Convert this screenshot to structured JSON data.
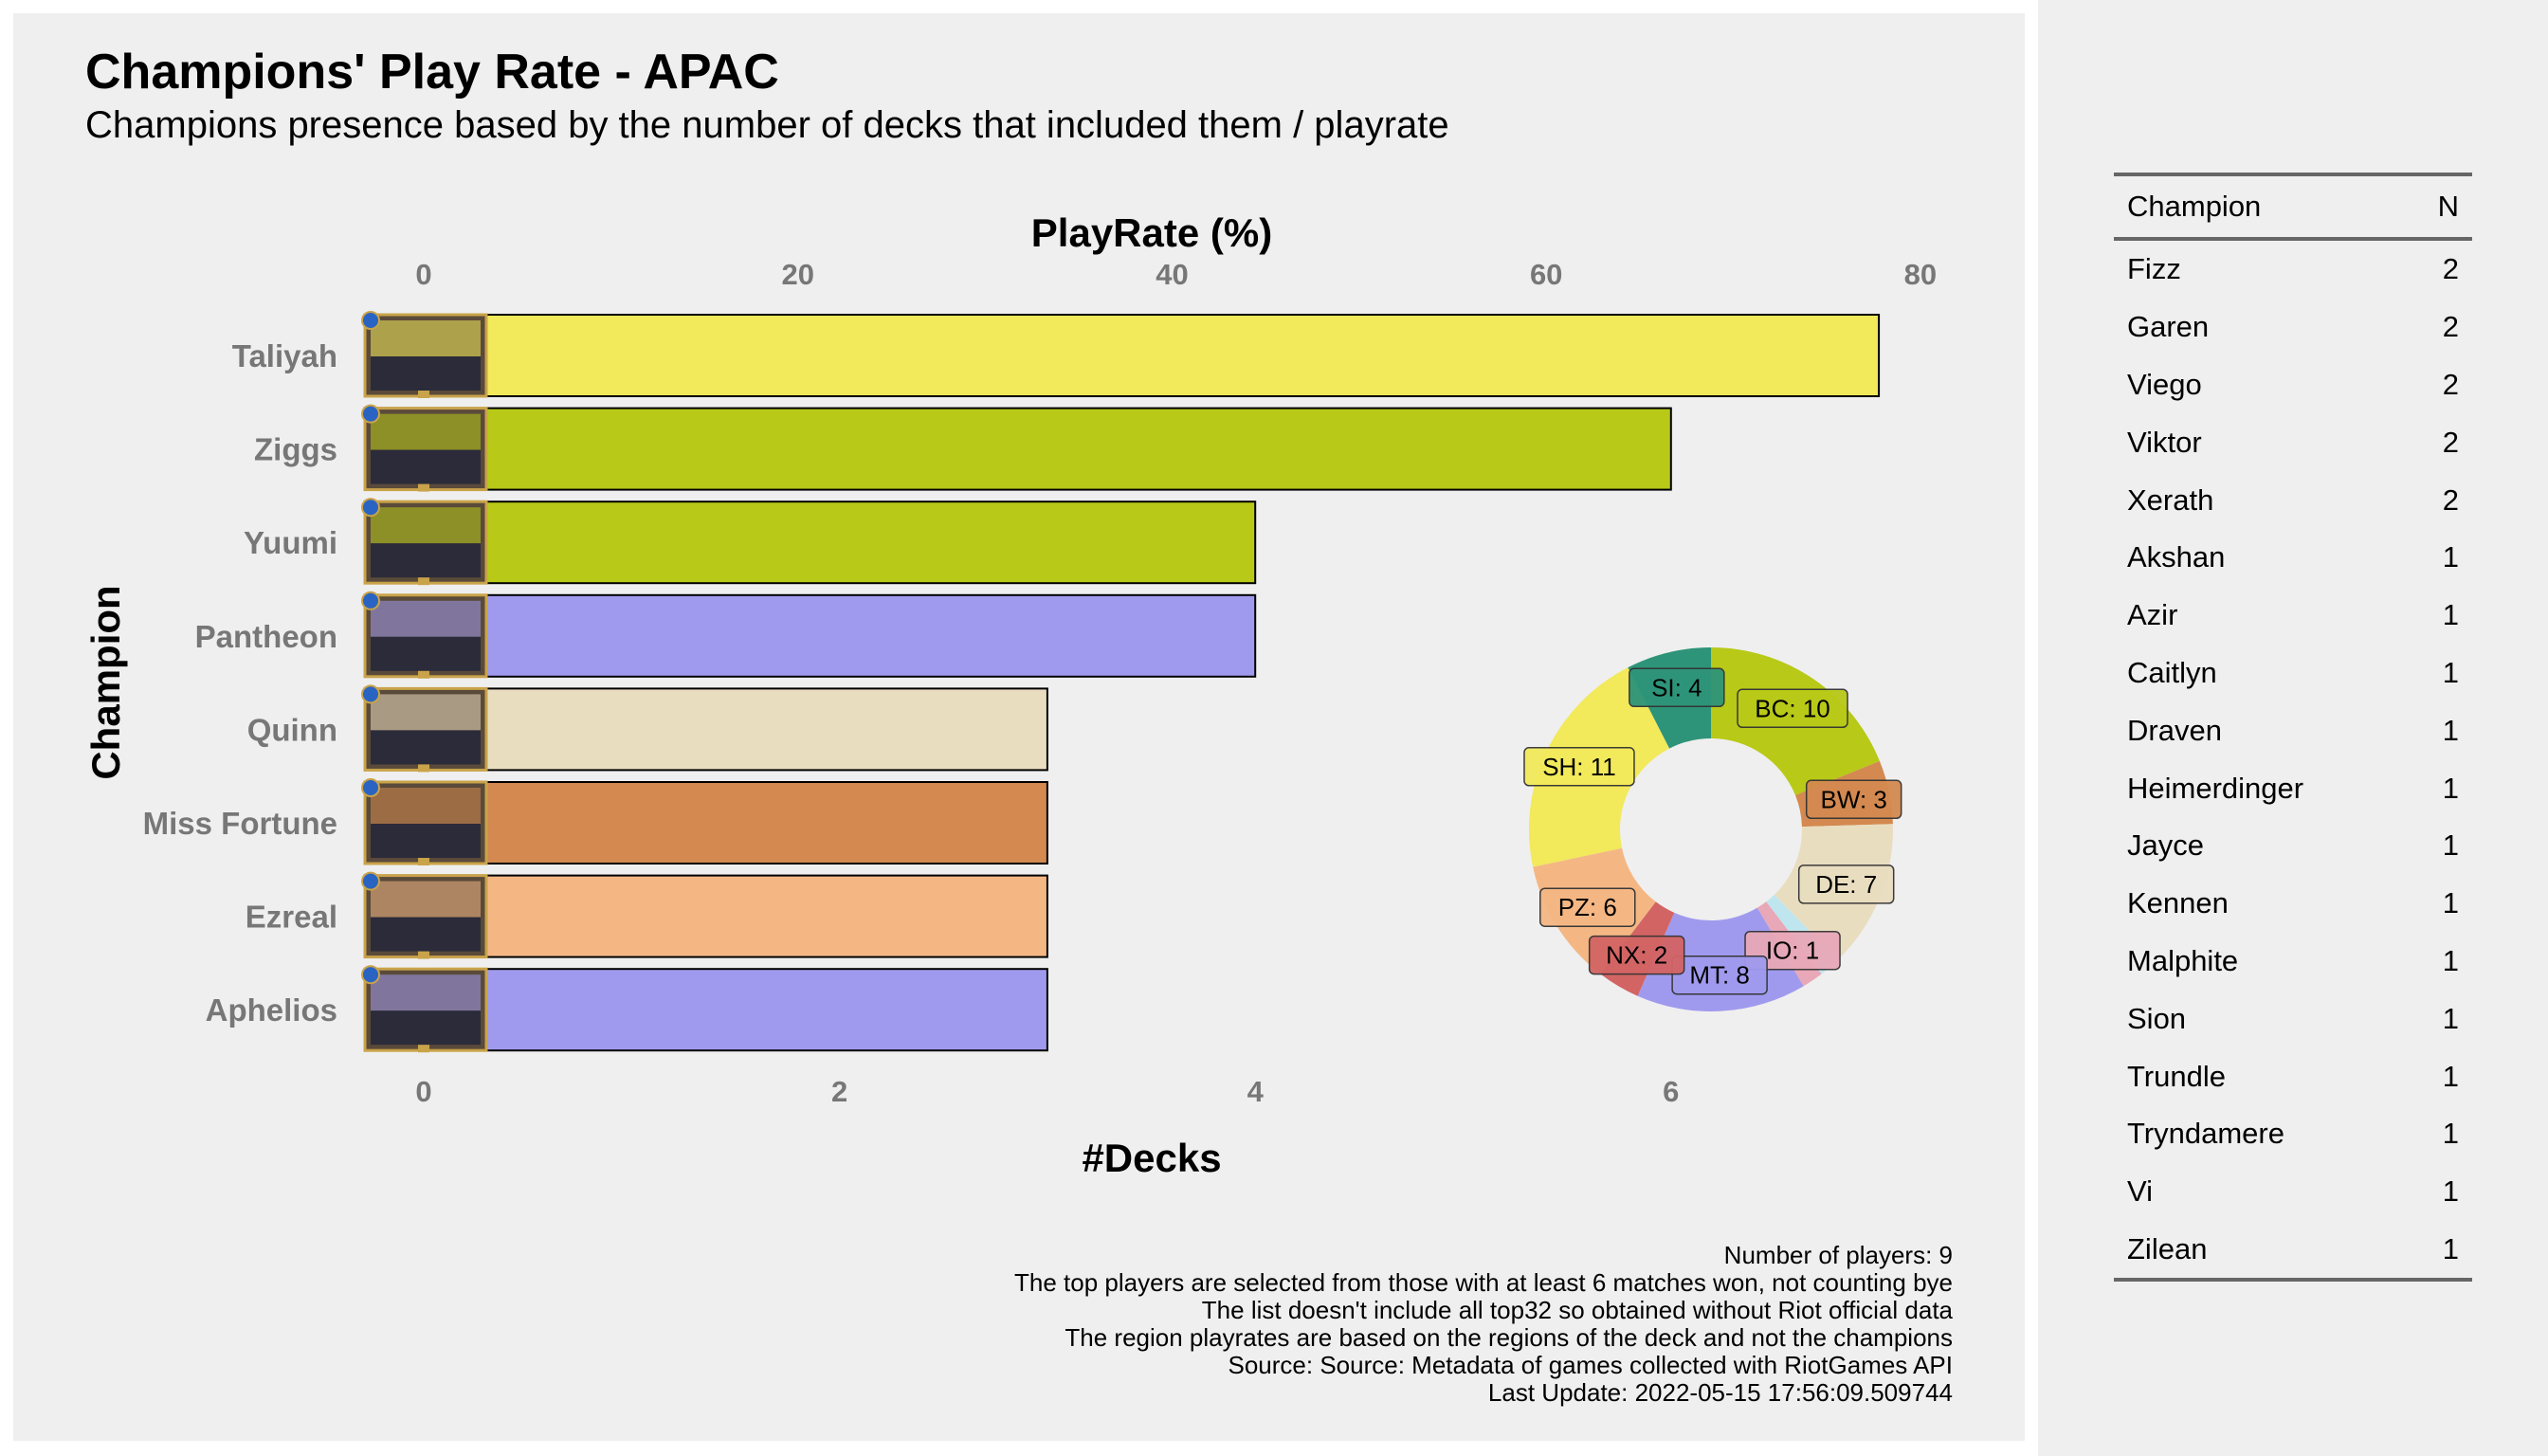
{
  "title": "Champions' Play Rate - APAC",
  "subtitle": "Champions presence based by the number of decks that included them / playrate",
  "chart_data": {
    "type": "bar",
    "orientation": "horizontal",
    "top_axis_title": "PlayRate (%)",
    "bottom_axis_title": "#Decks",
    "y_axis_title": "Champion",
    "top_ticks": [
      0,
      20,
      40,
      60,
      80
    ],
    "bottom_ticks": [
      0,
      2,
      4,
      6
    ],
    "xlim_decks": [
      0,
      7.78
    ],
    "categories": [
      "Taliyah",
      "Ziggs",
      "Yuumi",
      "Pantheon",
      "Quinn",
      "Miss Fortune",
      "Ezreal",
      "Aphelios"
    ],
    "values": [
      7,
      6,
      4,
      4,
      3,
      3,
      3,
      3
    ],
    "bar_colors": [
      "#f2e95b",
      "#b8c918",
      "#b8c918",
      "#a09aee",
      "#e9ddc0",
      "#d3894f",
      "#f4b784",
      "#a09aee"
    ],
    "donut": {
      "type": "pie",
      "slices": [
        {
          "label": "BC: 10",
          "value": 10,
          "color": "#b8c918"
        },
        {
          "label": "BW: 3",
          "value": 3,
          "color": "#d3894f"
        },
        {
          "label": "DE: 7",
          "value": 7,
          "color": "#e9ddc0"
        },
        {
          "label": "",
          "value": 1,
          "color": "#bfe6ef"
        },
        {
          "label": "IO: 1",
          "value": 1,
          "color": "#e8a8b8"
        },
        {
          "label": "MT: 8",
          "value": 8,
          "color": "#a09aee"
        },
        {
          "label": "NX: 2",
          "value": 2,
          "color": "#d36464"
        },
        {
          "label": "PZ: 6",
          "value": 6,
          "color": "#f4b784"
        },
        {
          "label": "SH: 11",
          "value": 11,
          "color": "#f2e95b"
        },
        {
          "label": "SI: 4",
          "value": 4,
          "color": "#2e9479"
        }
      ]
    }
  },
  "notes": [
    "Number of players: 9",
    "The top players are selected from those with at least 6 matches won, not counting bye",
    "The list doesn't include all top32 so obtained without Riot official data",
    "The region playrates are based on the regions of the deck and not the champions",
    "Source: Source: Metadata of games collected with RiotGames API",
    "Last Update: 2022-05-15 17:56:09.509744"
  ],
  "table": {
    "headers": [
      "Champion",
      "N"
    ],
    "rows": [
      [
        "Fizz",
        "2"
      ],
      [
        "Garen",
        "2"
      ],
      [
        "Viego",
        "2"
      ],
      [
        "Viktor",
        "2"
      ],
      [
        "Xerath",
        "2"
      ],
      [
        "Akshan",
        "1"
      ],
      [
        "Azir",
        "1"
      ],
      [
        "Caitlyn",
        "1"
      ],
      [
        "Draven",
        "1"
      ],
      [
        "Heimerdinger",
        "1"
      ],
      [
        "Jayce",
        "1"
      ],
      [
        "Kennen",
        "1"
      ],
      [
        "Malphite",
        "1"
      ],
      [
        "Sion",
        "1"
      ],
      [
        "Trundle",
        "1"
      ],
      [
        "Tryndamere",
        "1"
      ],
      [
        "Vi",
        "1"
      ],
      [
        "Zilean",
        "1"
      ]
    ]
  }
}
